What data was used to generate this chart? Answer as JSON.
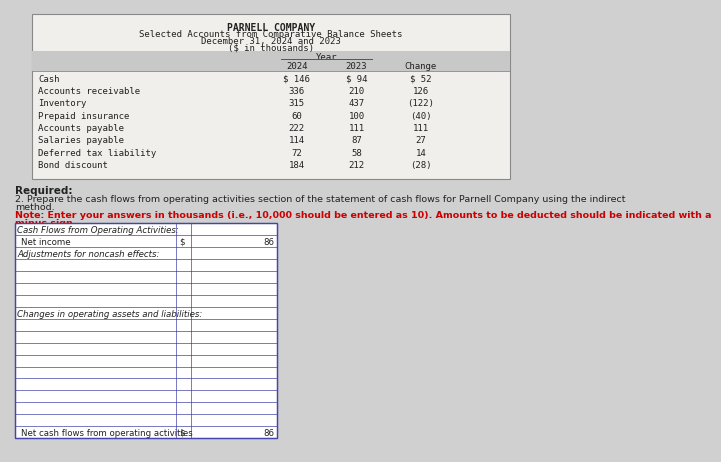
{
  "title_line1": "PARNELL COMPANY",
  "title_line2": "Selected Accounts from Comparative Balance Sheets",
  "title_line3": "December 31, 2024 and 2023",
  "title_line4": "($ in thousands)",
  "year_header": "Year",
  "col_headers": [
    "2024",
    "2023",
    "Change"
  ],
  "accounts": [
    "Cash",
    "Accounts receivable",
    "Inventory",
    "Prepaid insurance",
    "Accounts payable",
    "Salaries payable",
    "Deferred tax liability",
    "Bond discount"
  ],
  "col2024": [
    "$ 146",
    "336",
    "315",
    "60",
    "222",
    "114",
    "72",
    "184"
  ],
  "col2023": [
    "$ 94",
    "210",
    "437",
    "100",
    "111",
    "87",
    "58",
    "212"
  ],
  "colchange": [
    "$ 52",
    "126",
    "(122)",
    "(40)",
    "111",
    "27",
    "14",
    "(28)"
  ],
  "required_label": "Required:",
  "required_text1": "2. Prepare the cash flows from operating activities section of the statement of cash flows for Parnell Company using the indirect",
  "required_text2": "method.",
  "note_text1": "Note: Enter your answers in thousands (i.e., 10,000 should be entered as 10). Amounts to be deducted should be indicated with a",
  "note_text2": "minus sign.",
  "cf_section_label": "Cash Flows from Operating Activities:",
  "net_income_label": "Net income",
  "net_income_dollar": "$",
  "net_income_value": "86",
  "adj_label": "Adjustments for noncash effects:",
  "changes_label": "Changes in operating assets and liabilities:",
  "net_cf_label": "Net cash flows from operating activities",
  "net_cf_dollar": "$",
  "net_cf_value": "86",
  "num_adj_rows": 4,
  "num_changes_rows": 9,
  "table_bg": "#f0efeb",
  "header_bg": "#c8c8c8",
  "border_color": "#888888",
  "form_border_color": "#4444aa",
  "form_bg": "#ffffff",
  "page_bg": "#d0d0d0",
  "note_color": "#cc0000",
  "text_color": "#222222"
}
